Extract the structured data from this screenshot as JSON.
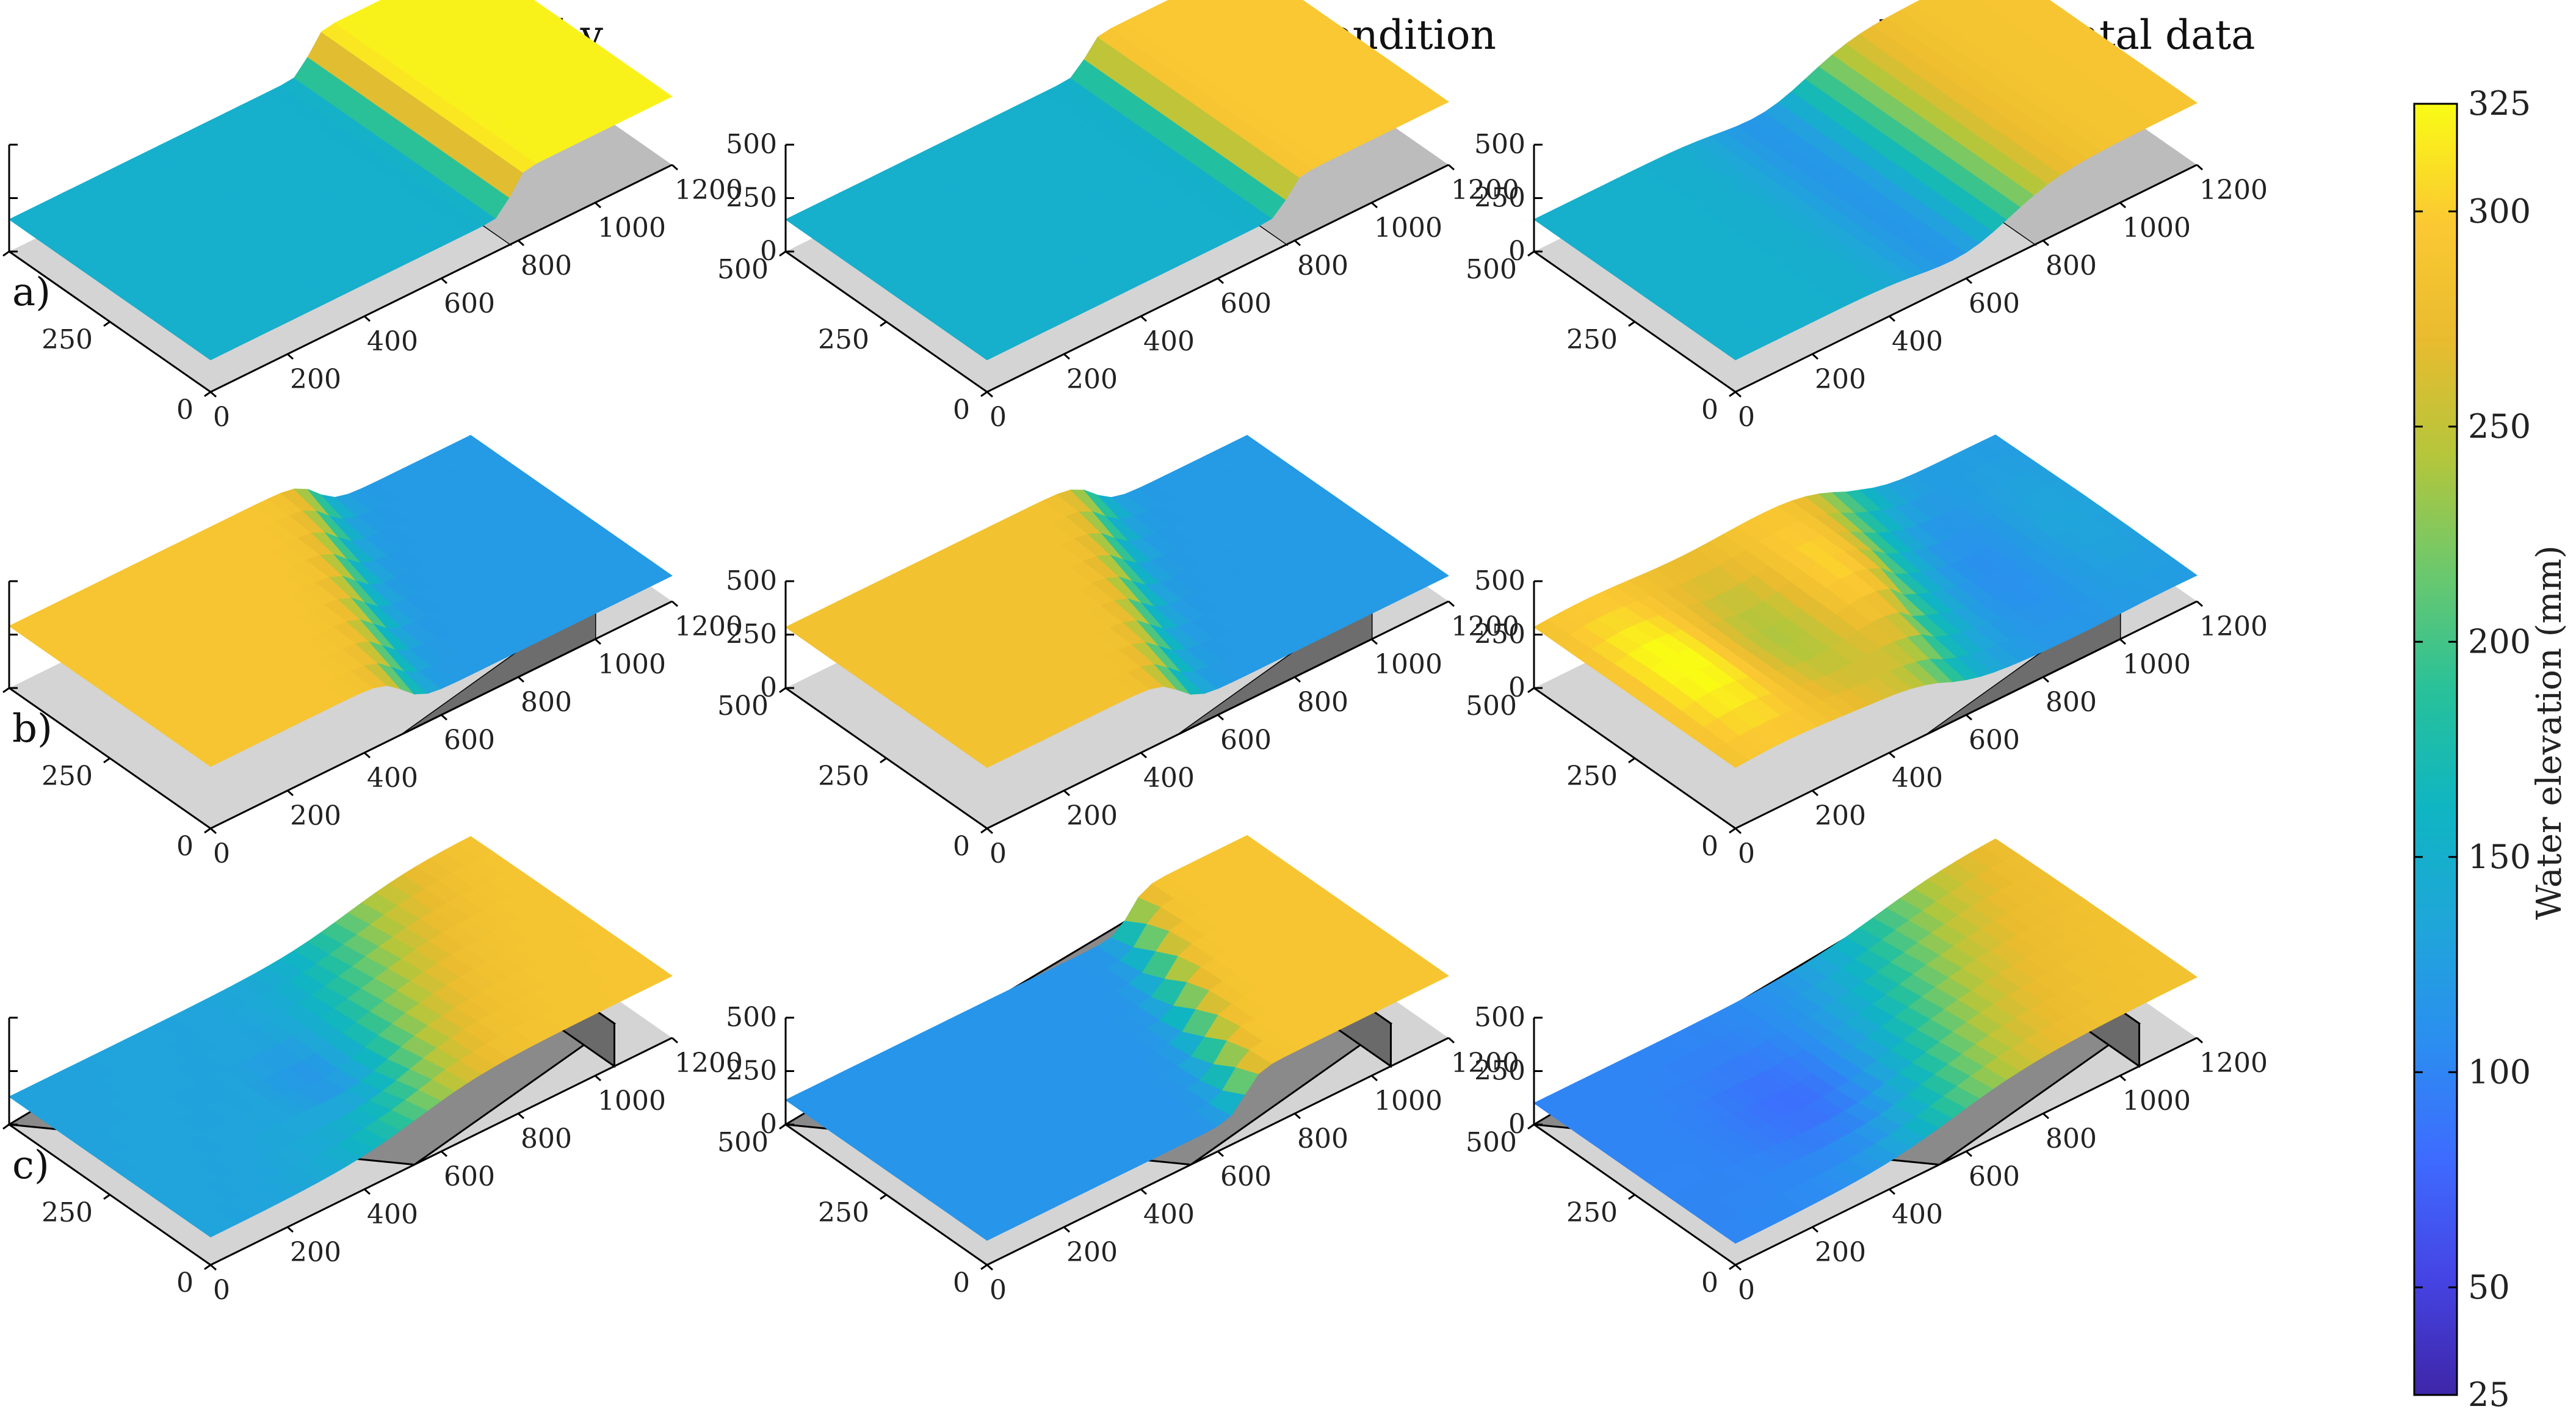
{
  "figure": {
    "column_titles": [
      "Topography",
      "Internal condition",
      "Experimental data"
    ],
    "row_labels": [
      "a)",
      "b)",
      "c)"
    ]
  },
  "chart_data": {
    "type": "surface3d",
    "layout": "3x3 grid of 3D surface plots",
    "title": "",
    "colorbar": {
      "label": "Water elevation (mm)",
      "range": [
        25,
        325
      ],
      "ticks": [
        25,
        50,
        100,
        150,
        200,
        250,
        300,
        325
      ],
      "colormap": "parula",
      "colors": [
        "#3e26a8",
        "#4544e4",
        "#3e6bff",
        "#2b8ef0",
        "#1fa6d9",
        "#0fb5c2",
        "#28c19a",
        "#6bc86d",
        "#b5c63b",
        "#e9bb2f",
        "#fbc932",
        "#f9fb15"
      ]
    },
    "axes": {
      "x": {
        "label": "",
        "range": [
          0,
          1200
        ],
        "ticks": [
          0,
          200,
          400,
          600,
          800,
          1000,
          1200
        ]
      },
      "y": {
        "label": "",
        "range": [
          0,
          500
        ],
        "ticks": [
          0,
          250,
          500
        ]
      },
      "z": {
        "label": "",
        "range": [
          0,
          500
        ],
        "ticks": [
          0,
          250,
          500
        ]
      }
    },
    "panels": [
      {
        "row": "a)",
        "column": "Topography",
        "upstream_level": 320,
        "downstream_level": 150,
        "step_x": 780,
        "profile": "sharp-step",
        "obstacle": "wall"
      },
      {
        "row": "a)",
        "column": "Internal condition",
        "upstream_level": 295,
        "downstream_level": 150,
        "step_x": 780,
        "profile": "sharp-step",
        "obstacle": "wall"
      },
      {
        "row": "a)",
        "column": "Experimental data",
        "upstream_level": 290,
        "downstream_level": 150,
        "dip_level": 100,
        "step_x": 780,
        "profile": "smooth-step",
        "obstacle": "wall"
      },
      {
        "row": "b)",
        "column": "Topography",
        "upstream_level": 290,
        "downstream_level": 120,
        "step_x": 1000,
        "profile": "oblique-step",
        "obstacle": "oblique-wall"
      },
      {
        "row": "b)",
        "column": "Internal condition",
        "upstream_level": 285,
        "downstream_level": 120,
        "step_x": 1000,
        "profile": "oblique-step",
        "obstacle": "oblique-wall"
      },
      {
        "row": "b)",
        "column": "Experimental data",
        "upstream_level": 285,
        "downstream_level": 120,
        "dip_level": 75,
        "step_x": 1000,
        "profile": "oblique-wavy",
        "obstacle": "oblique-wall"
      },
      {
        "row": "c)",
        "column": "Topography",
        "upstream_level": 290,
        "downstream_level": 130,
        "dip_level": 90,
        "step_x": 1050,
        "profile": "ramp-step",
        "obstacle": "ramp"
      },
      {
        "row": "c)",
        "column": "Internal condition",
        "upstream_level": 290,
        "downstream_level": 115,
        "step_x": 1050,
        "profile": "ramp-sharp",
        "obstacle": "ramp"
      },
      {
        "row": "c)",
        "column": "Experimental data",
        "upstream_level": 285,
        "downstream_level": 100,
        "dip_level": 70,
        "step_x": 1050,
        "profile": "ramp-smooth",
        "obstacle": "ramp"
      }
    ]
  }
}
